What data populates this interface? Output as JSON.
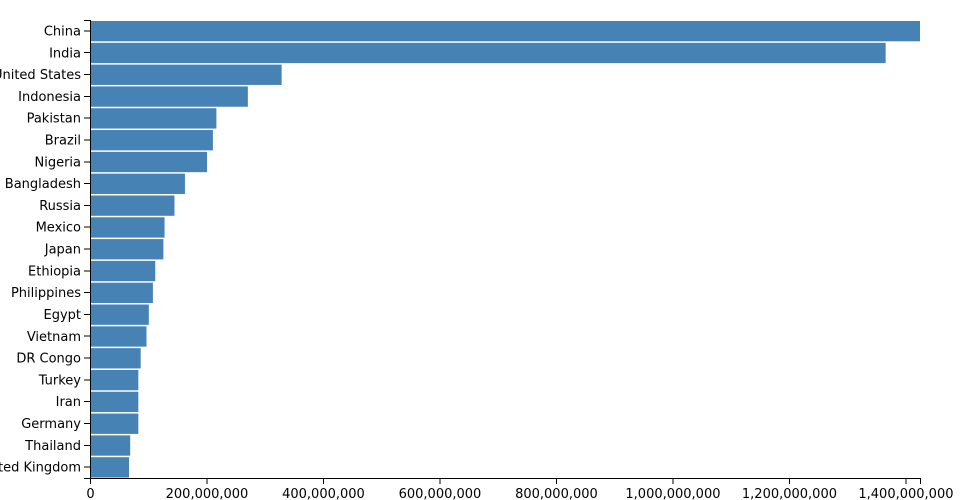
{
  "chart_data": {
    "type": "bar",
    "orientation": "horizontal",
    "categories": [
      "China",
      "India",
      "United States",
      "Indonesia",
      "Pakistan",
      "Brazil",
      "Nigeria",
      "Bangladesh",
      "Russia",
      "Mexico",
      "Japan",
      "Ethiopia",
      "Philippines",
      "Egypt",
      "Vietnam",
      "DR Congo",
      "Turkey",
      "Iran",
      "Germany",
      "Thailand",
      "United Kingdom"
    ],
    "values": [
      1425000000,
      1366000000,
      329000000,
      271000000,
      217000000,
      211000000,
      201000000,
      163000000,
      145000000,
      128000000,
      126000000,
      112000000,
      108000000,
      101000000,
      97000000,
      87000000,
      83000000,
      83000000,
      83000000,
      69000000,
      67000000
    ],
    "xticks": [
      0,
      200000000,
      400000000,
      600000000,
      800000000,
      1000000000,
      1200000000,
      1400000000
    ],
    "xtick_labels": [
      "0",
      "200,000,000",
      "400,000,000",
      "600,000,000",
      "800,000,000",
      "1,000,000,000",
      "1,200,000,000",
      "1,400,000,000"
    ],
    "xlim": [
      0,
      1425000000
    ],
    "title": "",
    "xlabel": "",
    "ylabel": "",
    "bar_color": "#4682b4",
    "grid": false
  }
}
